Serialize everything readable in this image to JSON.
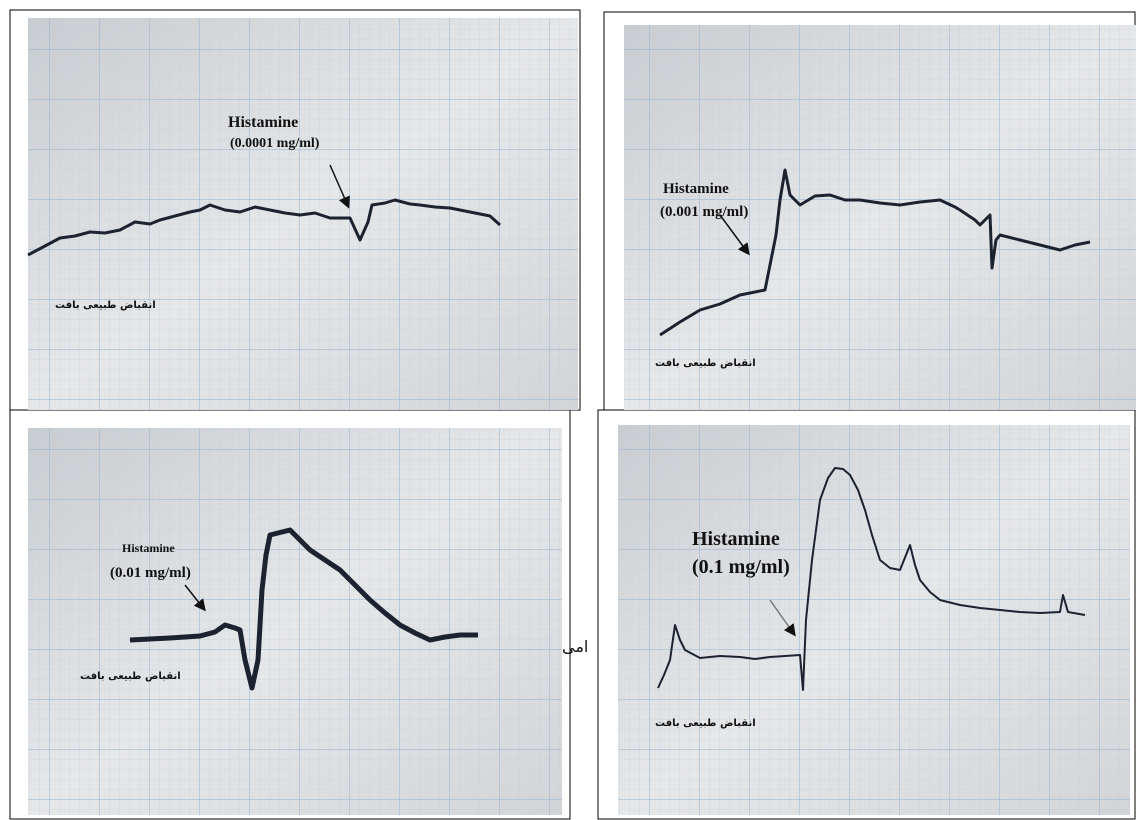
{
  "panels": [
    {
      "drug": "Histamine",
      "dose": "(0.0001 mg/ml)",
      "baseline_label": "انقباض طبیعی بافت"
    },
    {
      "drug": "Histamine",
      "dose": "(0.001 mg/ml)",
      "baseline_label": "انقباض طبیعی بافت"
    },
    {
      "drug": "Histamine",
      "dose": "(0.01 mg/ml)",
      "baseline_label": "انقباض طبیعی بافت"
    },
    {
      "drug": "Histamine",
      "dose": "(0.1 mg/ml)",
      "baseline_label": "انقباض طبیعی بافت"
    }
  ],
  "stray_text": "امی"
}
